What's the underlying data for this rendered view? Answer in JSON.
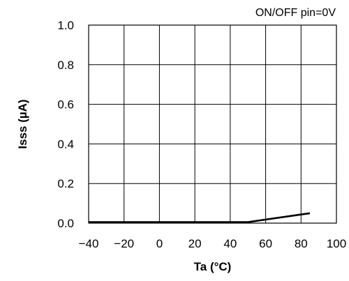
{
  "chart_data": {
    "type": "line",
    "title": "",
    "annotation": "ON/OFF pin=0V",
    "xlabel": "Ta (°C)",
    "ylabel": "Isss (µA)",
    "xlim": [
      -40,
      100
    ],
    "ylim": [
      0,
      1.0
    ],
    "xticks": [
      -40,
      -20,
      0,
      20,
      40,
      60,
      80,
      100
    ],
    "yticks": [
      0,
      0.2,
      0.4,
      0.6,
      0.8,
      1.0
    ],
    "xtick_labels": [
      "−40",
      "−20",
      "0",
      "20",
      "40",
      "60",
      "80",
      "100"
    ],
    "ytick_labels": [
      "0.0",
      "0.2",
      "0.4",
      "0.6",
      "0.8",
      "1.0"
    ],
    "grid": true,
    "series": [
      {
        "x": [
          -40,
          50,
          85
        ],
        "y": [
          0.005,
          0.005,
          0.05
        ]
      }
    ],
    "colors": {
      "line": "#000000",
      "grid": "#000000",
      "background": "#ffffff"
    }
  }
}
